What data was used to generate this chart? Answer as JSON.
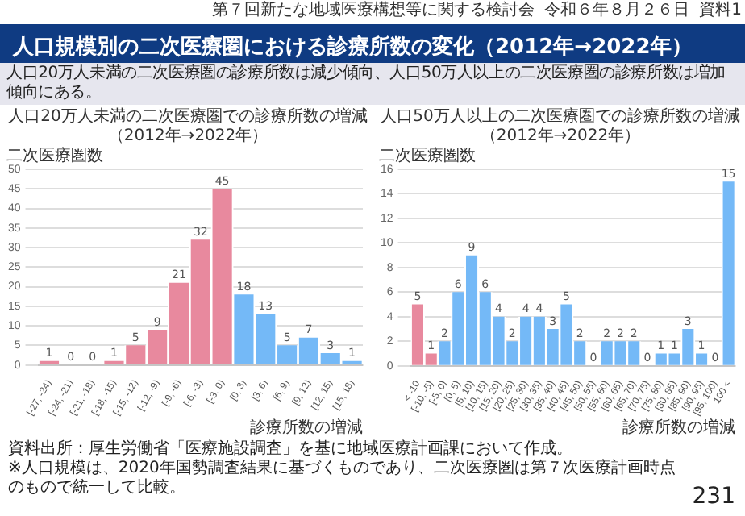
{
  "chart_data": [
    {
      "type": "bar",
      "title": "人口20万人未満の二次医療圏での診療所数の増減",
      "subtitle": "（2012年→2022年）",
      "ylabel": "二次医療圏数",
      "xlabel": "診療所数の増減",
      "categories": [
        "[-27, -24)",
        "[-24, -21)",
        "[-21, -18)",
        "[-18, -15)",
        "[-15, -12)",
        "[-12, -9)",
        "[-9, -6)",
        "[-6, -3)",
        "[-3, 0)",
        "[0, 3)",
        "[3, 6)",
        "[6, 9)",
        "[9, 12)",
        "[12, 15)",
        "[15, 18)"
      ],
      "values": [
        1,
        0,
        0,
        1,
        5,
        9,
        21,
        32,
        45,
        18,
        13,
        5,
        7,
        3,
        1
      ],
      "colors": [
        "#e8899e",
        "#e8899e",
        "#e8899e",
        "#e8899e",
        "#e8899e",
        "#e8899e",
        "#e8899e",
        "#e8899e",
        "#e8899e",
        "#74b9f7",
        "#74b9f7",
        "#74b9f7",
        "#74b9f7",
        "#74b9f7",
        "#74b9f7"
      ],
      "ylim": [
        0,
        50
      ],
      "yticks": [
        0,
        5,
        10,
        15,
        20,
        25,
        30,
        35,
        40,
        45,
        50
      ],
      "grid": "y",
      "data_labels": true,
      "annotations": [
        "第７回新たな地域医療構想等に関する検討会",
        "令和６年８月２６日",
        "資料1",
        "人口規模別の二次医療圏における診療所数の変化（2012年→2022年）",
        "人口20万人未満の二次医療圏の診療所数は減少傾向、人口50万人以上の二次医療圏の診療所数は増加傾向にある。"
      ]
    },
    {
      "type": "bar",
      "title": "人口50万人以上の二次医療圏での診療所数の増減",
      "subtitle": "（2012年→2022年）",
      "ylabel": "二次医療圏数",
      "xlabel": "診療所数の増減",
      "categories": [
        "< -10",
        "[-10, -5)",
        "[-5, 0)",
        "[0, 5)",
        "[5, 10)",
        "[10, 15)",
        "[15, 20)",
        "[20, 25)",
        "[25, 30)",
        "[30, 35)",
        "[35, 40)",
        "[40, 45)",
        "[45, 50)",
        "[50, 55)",
        "[55, 60)",
        "[60, 65)",
        "[65, 70)",
        "[70, 75)",
        "[75, 80)",
        "[80, 85)",
        "[85, 90)",
        "[90, 95)",
        "[95, 100)",
        "100 <"
      ],
      "values": [
        5,
        1,
        2,
        6,
        9,
        6,
        4,
        2,
        4,
        4,
        3,
        5,
        2,
        0,
        2,
        2,
        2,
        0,
        1,
        1,
        3,
        1,
        0,
        15
      ],
      "colors": [
        "#e8899e",
        "#e8899e",
        "#74b9f7",
        "#74b9f7",
        "#74b9f7",
        "#74b9f7",
        "#74b9f7",
        "#74b9f7",
        "#74b9f7",
        "#74b9f7",
        "#74b9f7",
        "#74b9f7",
        "#74b9f7",
        "#74b9f7",
        "#74b9f7",
        "#74b9f7",
        "#74b9f7",
        "#74b9f7",
        "#74b9f7",
        "#74b9f7",
        "#74b9f7",
        "#74b9f7",
        "#74b9f7",
        "#74b9f7"
      ],
      "ylim": [
        0,
        16
      ],
      "yticks": [
        0,
        2,
        4,
        6,
        8,
        10,
        12,
        14,
        16
      ],
      "grid": "y",
      "data_labels": true,
      "annotations": [
        "資料出所：厚生労働省「医療施設調査」を基に地域医療計画課において作成。",
        "※人口規模は、2020年国勢調査結果に基づくものであり、二次医療圏は第７次医療計画時点のもので統一して比較。",
        "231"
      ]
    }
  ]
}
